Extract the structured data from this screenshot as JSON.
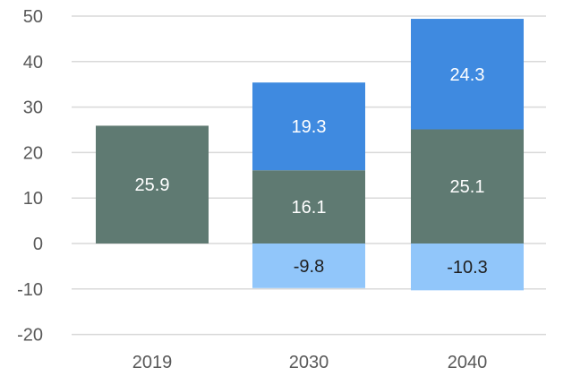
{
  "chart_data": {
    "type": "bar",
    "stacked": true,
    "categories": [
      "2019",
      "2030",
      "2040"
    ],
    "ylim": [
      -20,
      50
    ],
    "yticks": [
      -20,
      -10,
      0,
      10,
      20,
      30,
      40,
      50
    ],
    "ytick_labels": [
      "-20",
      "-10",
      "0",
      "10",
      "20",
      "30",
      "40",
      "50"
    ],
    "grid": true,
    "legend": "none",
    "series": [
      {
        "color": "#5f7a72",
        "values": [
          25.9,
          16.1,
          25.1
        ],
        "labels": [
          "25.9",
          "16.1",
          "25.1"
        ],
        "label_color": "#ffffff"
      },
      {
        "color": "#3f8ae0",
        "values": [
          0,
          19.3,
          24.3
        ],
        "labels": [
          "",
          "19.3",
          "24.3"
        ],
        "label_color": "#ffffff"
      },
      {
        "color": "#91c6fa",
        "values": [
          0,
          -9.8,
          -10.3
        ],
        "labels": [
          "",
          "-9.8",
          "-10.3"
        ],
        "label_color": "#1f1f1f"
      }
    ],
    "colors": {
      "grid": "#d9d9d9",
      "axis_text": "#595959"
    }
  }
}
